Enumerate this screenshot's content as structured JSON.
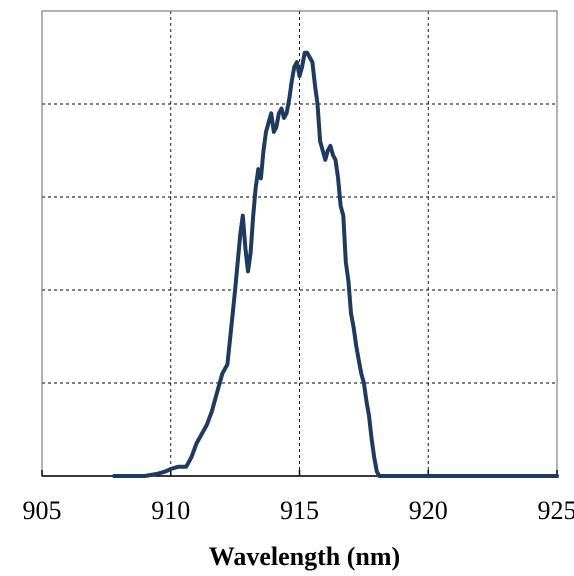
{
  "chart_data": {
    "type": "line",
    "title": "",
    "xlabel": "Wavelength (nm)",
    "ylabel": "",
    "xlim": [
      905,
      925
    ],
    "ylim": [
      0,
      1
    ],
    "x_ticks": [
      905,
      910,
      915,
      920,
      925
    ],
    "x_tick_labels": [
      "905",
      "910",
      "915",
      "920",
      "925"
    ],
    "y_gridlines": [
      0.2,
      0.4,
      0.6,
      0.8
    ],
    "grid": true,
    "legend": "none",
    "line_color": "#1f3a5f",
    "series": [
      {
        "x": [
          907.8,
          909.0,
          909.5,
          909.8,
          910.0,
          910.3,
          910.6,
          910.8,
          911.0,
          911.2,
          911.4,
          911.6,
          911.8,
          912.0,
          912.2,
          912.35,
          912.5,
          912.6,
          912.7,
          912.8,
          912.9,
          913.0,
          913.1,
          913.2,
          913.3,
          913.4,
          913.5,
          913.6,
          913.7,
          913.8,
          913.9,
          914.0,
          914.1,
          914.2,
          914.3,
          914.4,
          914.5,
          914.6,
          914.7,
          914.8,
          914.9,
          915.0,
          915.1,
          915.2,
          915.3,
          915.4,
          915.5,
          915.6,
          915.7,
          915.8,
          915.9,
          916.0,
          916.1,
          916.2,
          916.3,
          916.4,
          916.5,
          916.6,
          916.7,
          916.8,
          916.9,
          917.0,
          917.1,
          917.2,
          917.3,
          917.4,
          917.5,
          917.6,
          917.7,
          917.8,
          917.9,
          918.0,
          918.1,
          918.2,
          918.3,
          918.4,
          918.5,
          918.6,
          918.7,
          918.8,
          918.9,
          919.0,
          919.1,
          919.2,
          919.3,
          919.4,
          919.6,
          919.8,
          920.5,
          925.0
        ],
        "y": [
          0.0,
          0.0,
          0.005,
          0.01,
          0.015,
          0.02,
          0.02,
          0.04,
          0.07,
          0.09,
          0.11,
          0.14,
          0.18,
          0.22,
          0.24,
          0.32,
          0.4,
          0.46,
          0.52,
          0.56,
          0.49,
          0.44,
          0.48,
          0.56,
          0.62,
          0.66,
          0.64,
          0.7,
          0.74,
          0.76,
          0.78,
          0.74,
          0.75,
          0.78,
          0.79,
          0.77,
          0.78,
          0.81,
          0.85,
          0.88,
          0.89,
          0.86,
          0.88,
          0.91,
          0.91,
          0.9,
          0.89,
          0.84,
          0.8,
          0.72,
          0.7,
          0.68,
          0.7,
          0.71,
          0.69,
          0.68,
          0.64,
          0.58,
          0.56,
          0.46,
          0.42,
          0.35,
          0.32,
          0.28,
          0.25,
          0.22,
          0.2,
          0.16,
          0.13,
          0.08,
          0.04,
          0.01,
          0.0,
          0.0,
          0.0,
          0.0,
          0.0,
          0.0,
          0.0,
          0.0,
          0.0,
          0.0,
          0.0,
          0.0,
          0.0,
          0.0,
          0.0,
          0.0,
          0.0,
          0.0
        ]
      }
    ]
  }
}
